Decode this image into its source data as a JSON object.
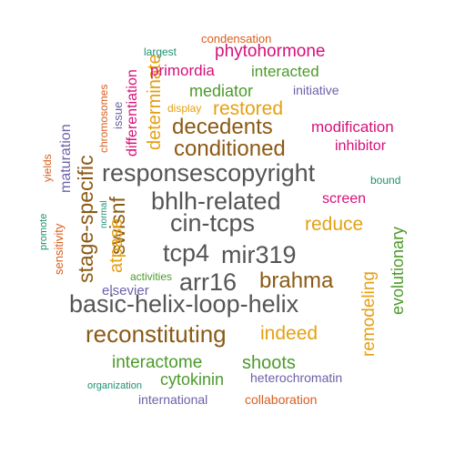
{
  "colors": {
    "gray": "#555555",
    "brown": "#8B5A14",
    "gold": "#E5A011",
    "green": "#4C9A2A",
    "magenta": "#D6117A",
    "purple": "#6B62A8",
    "orange": "#D85E1E",
    "teal": "#1E9071"
  },
  "words": [
    {
      "text": "responsescopyright",
      "color": "gray"
    },
    {
      "text": "bhlh-related",
      "color": "gray"
    },
    {
      "text": "basic-helix-loop-helix",
      "color": "gray"
    },
    {
      "text": "cin-tcps",
      "color": "gray"
    },
    {
      "text": "tcp4",
      "color": "gray"
    },
    {
      "text": "mir319",
      "color": "gray"
    },
    {
      "text": "arr16",
      "color": "gray"
    },
    {
      "text": "conditioned",
      "color": "brown"
    },
    {
      "text": "decedents",
      "color": "brown"
    },
    {
      "text": "reconstituting",
      "color": "brown"
    },
    {
      "text": "brahma",
      "color": "brown"
    },
    {
      "text": "stage-specific",
      "color": "brown"
    },
    {
      "text": "swisnf",
      "color": "brown"
    },
    {
      "text": "indeed",
      "color": "gold"
    },
    {
      "text": "reduce",
      "color": "gold"
    },
    {
      "text": "restored",
      "color": "gold"
    },
    {
      "text": "atpase",
      "color": "gold"
    },
    {
      "text": "determinate",
      "color": "gold"
    },
    {
      "text": "remodeling",
      "color": "gold"
    },
    {
      "text": "display",
      "color": "gold"
    },
    {
      "text": "phytohormone",
      "color": "magenta"
    },
    {
      "text": "primordia",
      "color": "magenta"
    },
    {
      "text": "modification",
      "color": "magenta"
    },
    {
      "text": "inhibitor",
      "color": "magenta"
    },
    {
      "text": "screen",
      "color": "magenta"
    },
    {
      "text": "differentiation",
      "color": "magenta"
    },
    {
      "text": "interacted",
      "color": "green"
    },
    {
      "text": "mediator",
      "color": "green"
    },
    {
      "text": "shoots",
      "color": "green"
    },
    {
      "text": "interactome",
      "color": "green"
    },
    {
      "text": "evolutionary",
      "color": "green"
    },
    {
      "text": "cytokinin",
      "color": "green"
    },
    {
      "text": "activities",
      "color": "green"
    },
    {
      "text": "initiative",
      "color": "purple"
    },
    {
      "text": "heterochromatin",
      "color": "purple"
    },
    {
      "text": "international",
      "color": "purple"
    },
    {
      "text": "elsevier",
      "color": "purple"
    },
    {
      "text": "maturation",
      "color": "purple"
    },
    {
      "text": "issue",
      "color": "purple"
    },
    {
      "text": "condensation",
      "color": "orange"
    },
    {
      "text": "collaboration",
      "color": "orange"
    },
    {
      "text": "yields",
      "color": "orange"
    },
    {
      "text": "sensitivity",
      "color": "orange"
    },
    {
      "text": "chromosomes",
      "color": "orange"
    },
    {
      "text": "largest",
      "color": "teal"
    },
    {
      "text": "bound",
      "color": "teal"
    },
    {
      "text": "organization",
      "color": "teal"
    },
    {
      "text": "promote",
      "color": "teal"
    },
    {
      "text": "normal",
      "color": "teal"
    }
  ]
}
